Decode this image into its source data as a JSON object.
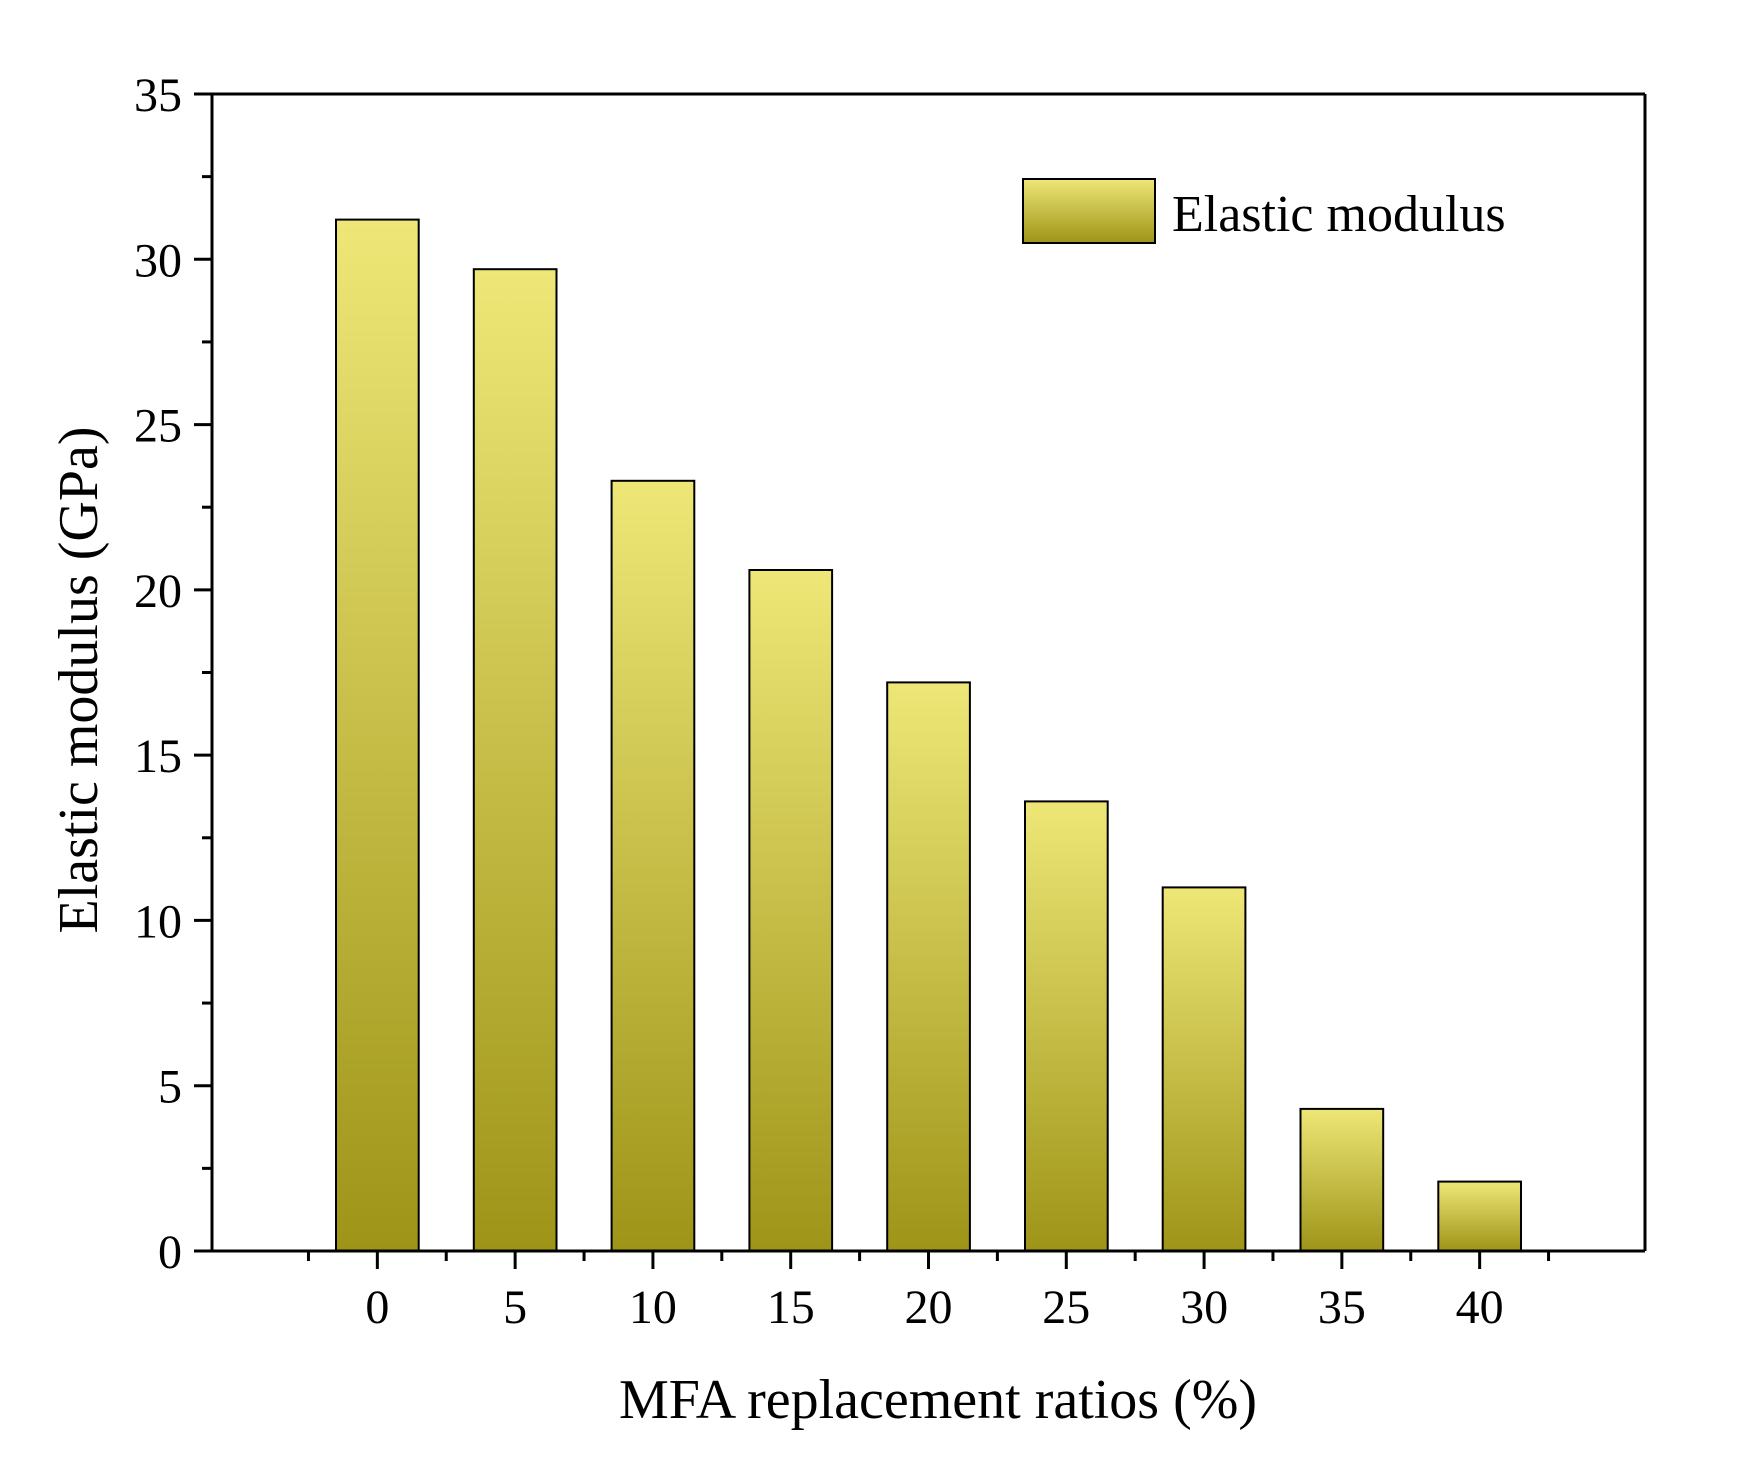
{
  "chart_data": {
    "type": "bar",
    "title": "",
    "xlabel": "MFA replacement ratios (%)",
    "ylabel": "Elastic modulus (GPa)",
    "categories": [
      "0",
      "5",
      "10",
      "15",
      "20",
      "25",
      "30",
      "35",
      "40"
    ],
    "series": [
      {
        "name": "Elastic modulus",
        "values": [
          31.2,
          29.7,
          23.3,
          20.6,
          17.2,
          13.6,
          11.0,
          4.3,
          2.1
        ]
      }
    ],
    "ylim": [
      0,
      35
    ],
    "yticks": [
      0,
      5,
      10,
      15,
      20,
      25,
      30,
      35
    ],
    "grid": false,
    "legend_position": "top-right",
    "colors": {
      "bar_top": "#EEE777",
      "bar_bottom": "#9E9418",
      "axis": "#000000"
    }
  }
}
